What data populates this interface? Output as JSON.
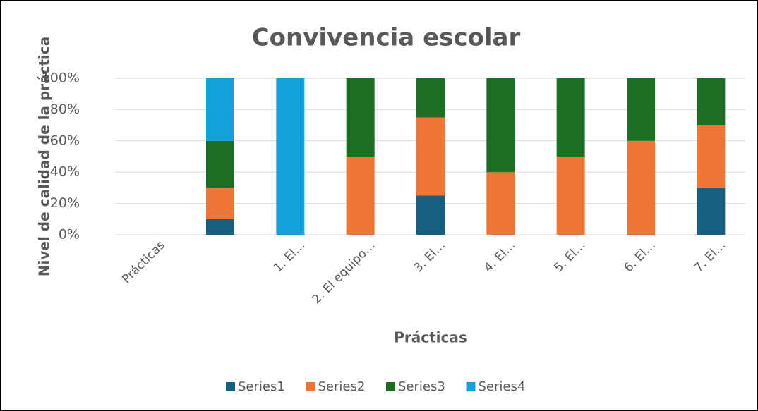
{
  "chart_data": {
    "type": "stacked_bar",
    "title": "Convivencia escolar",
    "x_label": "Prácticas",
    "y_label": "Nivel de calidad de la práctica",
    "categories": [
      "Prácticas",
      null,
      "1. El…",
      "2. El equipo…",
      "3. El…",
      "4. El…",
      "5. El…",
      "6. El…",
      "7. El…"
    ],
    "series": [
      {
        "name": "Series1",
        "color": "#175f82",
        "values": [
          0,
          10,
          0,
          0,
          25,
          0,
          0,
          0,
          30
        ]
      },
      {
        "name": "Series2",
        "color": "#ed7535",
        "values": [
          0,
          20,
          0,
          50,
          50,
          40,
          50,
          60,
          40
        ]
      },
      {
        "name": "Series3",
        "color": "#1d6e25",
        "values": [
          0,
          30,
          0,
          50,
          25,
          60,
          50,
          40,
          30
        ]
      },
      {
        "name": "Series4",
        "color": "#14a1d9",
        "values": [
          0,
          40,
          100,
          0,
          0,
          0,
          0,
          0,
          0
        ]
      }
    ],
    "ylim": [
      0,
      100
    ],
    "yticks": [
      {
        "value": 0,
        "label": "0%"
      },
      {
        "value": 20,
        "label": "20%"
      },
      {
        "value": 40,
        "label": "40%"
      },
      {
        "value": 60,
        "label": "60%"
      },
      {
        "value": 80,
        "label": "80%"
      },
      {
        "value": 100,
        "label": "100%"
      }
    ],
    "grid": true,
    "legend": "bottom"
  }
}
